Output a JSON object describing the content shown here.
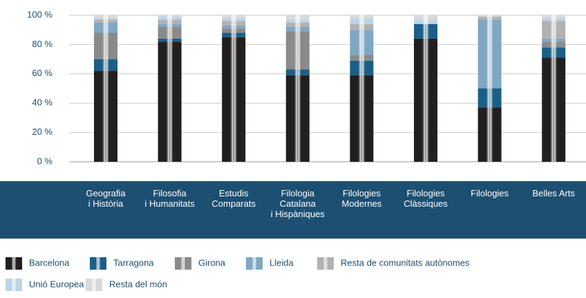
{
  "chart_data": {
    "type": "stacked_bar",
    "categories": [
      "Geografia\ni Història",
      "Filosofia\ni Humanitats",
      "Estudis\nComparats",
      "Filologia\nCatalana\ni Hispàniques",
      "Filologies\nModernes",
      "Filologies\nClàssiques",
      "Filologies",
      "Belles Arts"
    ],
    "series": [
      {
        "name": "Barcelona",
        "color": "#231f20",
        "values": [
          62,
          82,
          85,
          59,
          59,
          84,
          37,
          71
        ]
      },
      {
        "name": "Tarragona",
        "color": "#1a5f86",
        "values": [
          8,
          2,
          3,
          4,
          10,
          10,
          13,
          7
        ]
      },
      {
        "name": "Girona",
        "color": "#8a8a8a",
        "values": [
          18,
          8,
          3,
          26,
          4,
          0,
          0,
          4
        ]
      },
      {
        "name": "Lleida",
        "color": "#7ea7c3",
        "values": [
          7,
          2,
          2,
          3,
          17,
          0,
          47,
          2
        ]
      },
      {
        "name": "Resta de comunitats autònomes",
        "color": "#b1b1b1",
        "values": [
          2,
          3,
          3,
          3,
          4,
          0,
          2,
          12
        ]
      },
      {
        "name": "Unió Europea",
        "color": "#bcd4e6",
        "values": [
          1,
          2,
          2,
          2,
          4,
          3,
          0,
          2
        ]
      },
      {
        "name": "Resta del món",
        "color": "#d9d9d9",
        "values": [
          2,
          1,
          2,
          3,
          2,
          3,
          1,
          2
        ]
      }
    ],
    "ylim": [
      0,
      100
    ],
    "yticks": [
      {
        "value": 0,
        "label": "0 %"
      },
      {
        "value": 20,
        "label": "20 %"
      },
      {
        "value": 40,
        "label": "40 %"
      },
      {
        "value": 60,
        "label": "60 %"
      },
      {
        "value": 80,
        "label": "80 %"
      },
      {
        "value": 100,
        "label": "100 %"
      }
    ],
    "grid": true
  }
}
